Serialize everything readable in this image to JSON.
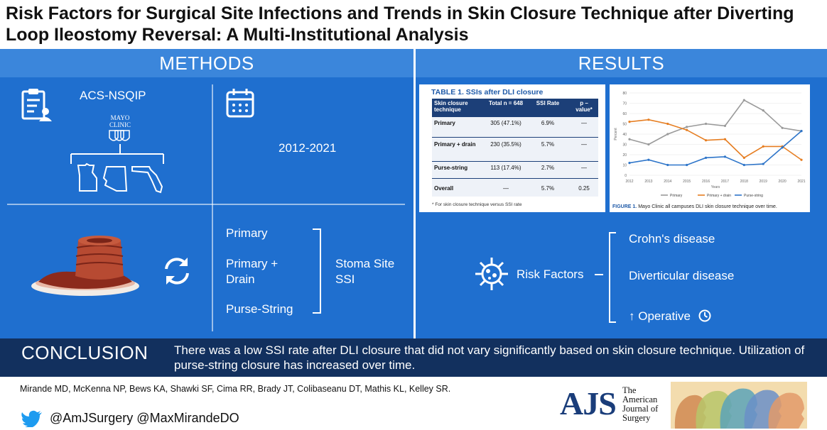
{
  "title": "Risk Factors for Surgical Site Infections and Trends in Skin Closure Technique after Diverting Loop Ileostomy Reversal: A Multi-Institutional Analysis",
  "methods": {
    "heading": "METHODS",
    "database": "ACS-NSQIP",
    "mayo_logo_line1": "MAYO",
    "mayo_logo_line2": "CLINIC",
    "years": "2012-2021",
    "techniques": [
      "Primary",
      "Primary + Drain",
      "Purse-String"
    ],
    "outcome_line1": "Stoma Site",
    "outcome_line2": "SSI"
  },
  "results": {
    "heading": "RESULTS",
    "table": {
      "title": "TABLE 1. SSIs after DLI closure",
      "headers": [
        "Skin closure technique",
        "Total n = 648",
        "SSI Rate",
        "p – value*"
      ],
      "rows": [
        [
          "Primary",
          "305 (47.1%)",
          "6.9%",
          "—"
        ],
        [
          "Primary + drain",
          "230 (35.5%)",
          "5.7%",
          "—"
        ],
        [
          "Purse-string",
          "113 (17.4%)",
          "2.7%",
          "—"
        ],
        [
          "Overall",
          "—",
          "5.7%",
          "0.25"
        ]
      ],
      "footnote": "* For skin closure technique versus SSI rate"
    },
    "figure_caption_label": "FIGURE 1.",
    "figure_caption": "Mayo Clinic all campuses DLI skin closure technique over time.",
    "risk_label": "Risk Factors",
    "risk_factors": [
      "Crohn's disease",
      "Diverticular disease",
      "↑ Operative"
    ]
  },
  "chart_data": {
    "type": "line",
    "x": [
      2012,
      2013,
      2014,
      2015,
      2016,
      2017,
      2018,
      2019,
      2020,
      2021
    ],
    "ylim": [
      0,
      80
    ],
    "yticks": [
      0,
      10,
      20,
      30,
      40,
      50,
      60,
      70,
      80
    ],
    "xlabel": "Years",
    "ylabel": "Percent",
    "series": [
      {
        "name": "Primary",
        "color": "#9a9a9a",
        "values": [
          35,
          30,
          40,
          47,
          50,
          48,
          73,
          63,
          46,
          43
        ]
      },
      {
        "name": "Primary + drain",
        "color": "#e67e22",
        "values": [
          52,
          54,
          50,
          44,
          34,
          35,
          17,
          28,
          28,
          15
        ]
      },
      {
        "name": "Purse-string",
        "color": "#2e75c9",
        "values": [
          12,
          15,
          10,
          10,
          17,
          18,
          10,
          11,
          27,
          43
        ]
      }
    ]
  },
  "conclusion": {
    "label": "CONCLUSION",
    "text": "There was a low SSI rate after DLI closure that did not vary significantly based on skin closure technique. Utilization of purse-string closure has increased over time."
  },
  "authors": "Mirande MD, McKenna NP, Bews KA, Shawki SF, Cima RR, Brady JT, Colibaseanu DT, Mathis KL, Kelley SR.",
  "social": "@AmJSurgery @MaxMirandeDO",
  "journal": {
    "abbr": "AJS",
    "line1": "The",
    "line2": "American",
    "line3": "Journal of",
    "line4": "Surgery"
  },
  "colors": {
    "panel": "#1f6fcf",
    "panel_head": "#3b86db",
    "conclusion": "#12305e",
    "journal_blue": "#1a3d7a"
  }
}
